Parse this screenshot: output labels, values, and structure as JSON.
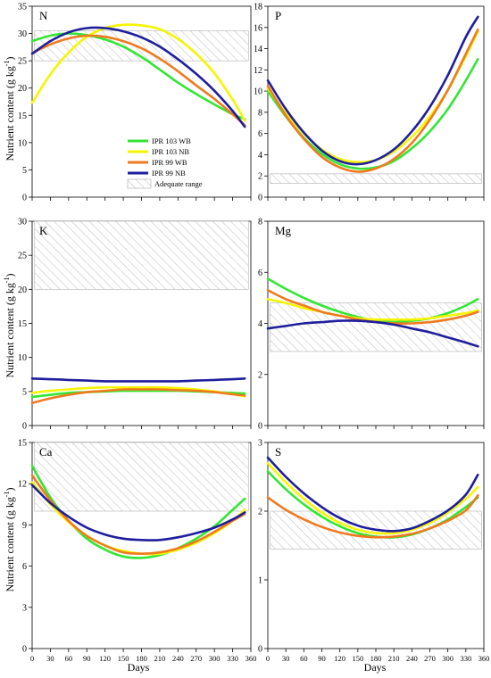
{
  "figure": {
    "ylabel_main": "Nutrient content (g kg",
    "ylabel_sup": "-1",
    "ylabel_close": ")",
    "xlabel": "Days"
  },
  "legend": {
    "items": [
      {
        "label": "IPR 103 WB",
        "color": "#33e633"
      },
      {
        "label": "IPR 103 NB",
        "color": "#f5f500"
      },
      {
        "label": "IPR 99 WB",
        "color": "#f07a1e"
      },
      {
        "label": "IPR 99 NB",
        "color": "#1e1e9e"
      }
    ],
    "adequate_label": "Adequate range"
  },
  "chart_data": [
    {
      "type": "line",
      "title": "N",
      "x": [
        0,
        30,
        60,
        90,
        120,
        150,
        180,
        210,
        240,
        270,
        300,
        330,
        360
      ],
      "ylim": [
        0,
        35
      ],
      "yticks": [
        0,
        5,
        10,
        15,
        20,
        25,
        30,
        35
      ],
      "adequate_range": [
        25,
        30.5
      ],
      "series": [
        {
          "name": "IPR 103 WB",
          "x": [
            0,
            30,
            60,
            90,
            120,
            150,
            180,
            210,
            240,
            270,
            300,
            330,
            350
          ],
          "values": [
            28.6,
            29.6,
            30.0,
            29.7,
            28.9,
            27.6,
            25.7,
            23.4,
            21.0,
            18.9,
            17.0,
            15.2,
            14.3
          ]
        },
        {
          "name": "IPR 103 NB",
          "x": [
            0,
            30,
            60,
            90,
            120,
            150,
            180,
            210,
            240,
            270,
            300,
            330,
            350
          ],
          "values": [
            17.3,
            22.5,
            26.5,
            29.4,
            31.0,
            31.6,
            31.5,
            30.8,
            29.0,
            26.3,
            22.7,
            17.9,
            14.0
          ]
        },
        {
          "name": "IPR 99 WB",
          "x": [
            0,
            30,
            60,
            90,
            120,
            150,
            180,
            210,
            240,
            270,
            300,
            330,
            350
          ],
          "values": [
            26.4,
            28.0,
            29.1,
            29.6,
            29.4,
            28.6,
            27.3,
            25.4,
            23.1,
            20.5,
            18.0,
            15.2,
            13.2
          ]
        },
        {
          "name": "IPR 99 NB",
          "x": [
            0,
            30,
            60,
            90,
            120,
            150,
            180,
            210,
            240,
            270,
            300,
            330,
            350
          ],
          "values": [
            26.3,
            28.6,
            30.2,
            31.0,
            31.0,
            30.4,
            29.3,
            27.6,
            25.3,
            22.6,
            19.5,
            15.8,
            12.9
          ]
        }
      ]
    },
    {
      "type": "line",
      "title": "P",
      "x": [
        0,
        30,
        60,
        90,
        120,
        150,
        180,
        210,
        240,
        270,
        300,
        330,
        360
      ],
      "ylim": [
        0,
        18
      ],
      "yticks": [
        0,
        2,
        4,
        6,
        8,
        10,
        12,
        14,
        16,
        18
      ],
      "adequate_range": [
        1.3,
        2.2
      ],
      "series": [
        {
          "name": "IPR 103 WB",
          "x": [
            0,
            30,
            60,
            90,
            120,
            150,
            180,
            210,
            240,
            270,
            300,
            330,
            350
          ],
          "values": [
            10.0,
            7.6,
            5.6,
            4.1,
            3.1,
            2.7,
            2.8,
            3.4,
            4.6,
            6.2,
            8.3,
            11.0,
            13.0
          ]
        },
        {
          "name": "IPR 103 NB",
          "x": [
            0,
            30,
            60,
            90,
            120,
            150,
            180,
            210,
            240,
            270,
            300,
            330,
            350
          ],
          "values": [
            10.3,
            7.9,
            6.0,
            4.5,
            3.6,
            3.3,
            3.5,
            4.3,
            5.7,
            7.6,
            10.1,
            13.3,
            15.6
          ]
        },
        {
          "name": "IPR 99 WB",
          "x": [
            0,
            30,
            60,
            90,
            120,
            150,
            180,
            210,
            240,
            270,
            300,
            330,
            350
          ],
          "values": [
            10.5,
            7.7,
            5.5,
            3.8,
            2.8,
            2.4,
            2.7,
            3.6,
            5.1,
            7.3,
            10.1,
            13.5,
            15.8
          ]
        },
        {
          "name": "IPR 99 NB",
          "x": [
            0,
            30,
            60,
            90,
            120,
            150,
            180,
            210,
            240,
            270,
            300,
            330,
            350
          ],
          "values": [
            11.0,
            8.3,
            6.1,
            4.4,
            3.4,
            3.1,
            3.5,
            4.5,
            6.2,
            8.5,
            11.5,
            15.1,
            17.0
          ]
        }
      ]
    },
    {
      "type": "line",
      "title": "K",
      "x": [
        0,
        30,
        60,
        90,
        120,
        150,
        180,
        210,
        240,
        270,
        300,
        330,
        360
      ],
      "ylim": [
        0,
        30
      ],
      "yticks": [
        0,
        5,
        10,
        15,
        20,
        25,
        30
      ],
      "adequate_range": [
        20,
        30
      ],
      "series": [
        {
          "name": "IPR 103 WB",
          "x": [
            0,
            30,
            60,
            90,
            120,
            150,
            180,
            210,
            240,
            270,
            300,
            330,
            350
          ],
          "values": [
            4.2,
            4.5,
            4.8,
            4.9,
            5.0,
            5.1,
            5.1,
            5.1,
            5.1,
            5.0,
            4.9,
            4.8,
            4.7
          ]
        },
        {
          "name": "IPR 103 NB",
          "x": [
            0,
            30,
            60,
            90,
            120,
            150,
            180,
            210,
            240,
            270,
            300,
            330,
            350
          ],
          "values": [
            4.8,
            5.1,
            5.3,
            5.5,
            5.6,
            5.6,
            5.6,
            5.6,
            5.5,
            5.3,
            5.0,
            4.6,
            4.3
          ]
        },
        {
          "name": "IPR 99 WB",
          "x": [
            0,
            30,
            60,
            90,
            120,
            150,
            180,
            210,
            240,
            270,
            300,
            330,
            350
          ],
          "values": [
            3.3,
            4.0,
            4.5,
            4.9,
            5.1,
            5.3,
            5.3,
            5.3,
            5.2,
            5.1,
            4.9,
            4.6,
            4.4
          ]
        },
        {
          "name": "IPR 99 NB",
          "x": [
            0,
            30,
            60,
            90,
            120,
            150,
            180,
            210,
            240,
            270,
            300,
            330,
            350
          ],
          "values": [
            6.9,
            6.8,
            6.7,
            6.6,
            6.5,
            6.5,
            6.5,
            6.5,
            6.5,
            6.6,
            6.7,
            6.8,
            6.9
          ]
        }
      ]
    },
    {
      "type": "line",
      "title": "Mg",
      "x": [
        0,
        30,
        60,
        90,
        120,
        150,
        180,
        210,
        240,
        270,
        300,
        330,
        360
      ],
      "ylim": [
        0,
        8
      ],
      "yticks": [
        0,
        2,
        4,
        6,
        8
      ],
      "adequate_range": [
        2.9,
        4.8
      ],
      "series": [
        {
          "name": "IPR 103 WB",
          "x": [
            0,
            30,
            60,
            90,
            120,
            150,
            180,
            210,
            240,
            270,
            300,
            330,
            350
          ],
          "values": [
            5.75,
            5.35,
            5.0,
            4.7,
            4.45,
            4.25,
            4.1,
            4.05,
            4.1,
            4.2,
            4.4,
            4.7,
            4.95
          ]
        },
        {
          "name": "IPR 103 NB",
          "x": [
            0,
            30,
            60,
            90,
            120,
            150,
            180,
            210,
            240,
            270,
            300,
            330,
            350
          ],
          "values": [
            4.95,
            4.8,
            4.6,
            4.45,
            4.3,
            4.2,
            4.15,
            4.15,
            4.15,
            4.2,
            4.3,
            4.4,
            4.5
          ]
        },
        {
          "name": "IPR 99 WB",
          "x": [
            0,
            30,
            60,
            90,
            120,
            150,
            180,
            210,
            240,
            270,
            300,
            330,
            350
          ],
          "values": [
            5.3,
            4.95,
            4.7,
            4.45,
            4.3,
            4.15,
            4.05,
            4.0,
            4.0,
            4.05,
            4.15,
            4.3,
            4.45
          ]
        },
        {
          "name": "IPR 99 NB",
          "x": [
            0,
            30,
            60,
            90,
            120,
            150,
            180,
            210,
            240,
            270,
            300,
            330,
            350
          ],
          "values": [
            3.8,
            3.9,
            4.0,
            4.05,
            4.1,
            4.1,
            4.05,
            3.95,
            3.8,
            3.65,
            3.45,
            3.25,
            3.1
          ]
        }
      ]
    },
    {
      "type": "line",
      "title": "Ca",
      "x": [
        0,
        30,
        60,
        90,
        120,
        150,
        180,
        210,
        240,
        270,
        300,
        330,
        360
      ],
      "ylim": [
        0,
        15
      ],
      "yticks": [
        0,
        3,
        6,
        9,
        12,
        15
      ],
      "adequate_range": [
        10,
        15
      ],
      "series": [
        {
          "name": "IPR 103 WB",
          "x": [
            0,
            30,
            60,
            90,
            120,
            150,
            180,
            210,
            240,
            270,
            300,
            330,
            350
          ],
          "values": [
            13.3,
            11.0,
            9.3,
            8.0,
            7.2,
            6.7,
            6.6,
            6.8,
            7.3,
            8.0,
            8.9,
            10.1,
            10.9
          ]
        },
        {
          "name": "IPR 103 NB",
          "x": [
            0,
            30,
            60,
            90,
            120,
            150,
            180,
            210,
            240,
            270,
            300,
            330,
            350
          ],
          "values": [
            12.1,
            10.5,
            9.2,
            8.2,
            7.5,
            7.1,
            6.9,
            6.9,
            7.2,
            7.7,
            8.4,
            9.3,
            10.1
          ]
        },
        {
          "name": "IPR 99 WB",
          "x": [
            0,
            30,
            60,
            90,
            120,
            150,
            180,
            210,
            240,
            270,
            300,
            330,
            350
          ],
          "values": [
            12.6,
            10.8,
            9.3,
            8.2,
            7.5,
            7.0,
            6.9,
            7.0,
            7.3,
            7.8,
            8.5,
            9.3,
            9.8
          ]
        },
        {
          "name": "IPR 99 NB",
          "x": [
            0,
            30,
            60,
            90,
            120,
            150,
            180,
            210,
            240,
            270,
            300,
            330,
            350
          ],
          "values": [
            11.9,
            10.6,
            9.6,
            8.8,
            8.3,
            8.0,
            7.9,
            7.9,
            8.1,
            8.4,
            8.8,
            9.4,
            9.9
          ]
        }
      ]
    },
    {
      "type": "line",
      "title": "S",
      "x": [
        0,
        30,
        60,
        90,
        120,
        150,
        180,
        210,
        240,
        270,
        300,
        330,
        360
      ],
      "ylim": [
        0,
        3
      ],
      "yticks": [
        0,
        1,
        2,
        3
      ],
      "adequate_range": [
        1.45,
        2.0
      ],
      "series": [
        {
          "name": "IPR 103 WB",
          "x": [
            0,
            30,
            60,
            90,
            120,
            150,
            180,
            210,
            240,
            270,
            300,
            330,
            350
          ],
          "values": [
            2.58,
            2.32,
            2.1,
            1.92,
            1.78,
            1.68,
            1.63,
            1.62,
            1.66,
            1.75,
            1.88,
            2.06,
            2.2
          ]
        },
        {
          "name": "IPR 103 NB",
          "x": [
            0,
            30,
            60,
            90,
            120,
            150,
            180,
            210,
            240,
            270,
            300,
            330,
            350
          ],
          "values": [
            2.7,
            2.42,
            2.18,
            1.98,
            1.83,
            1.73,
            1.68,
            1.68,
            1.73,
            1.83,
            1.98,
            2.18,
            2.35
          ]
        },
        {
          "name": "IPR 99 WB",
          "x": [
            0,
            30,
            60,
            90,
            120,
            150,
            180,
            210,
            240,
            270,
            300,
            330,
            350
          ],
          "values": [
            2.2,
            2.02,
            1.88,
            1.77,
            1.69,
            1.64,
            1.62,
            1.63,
            1.67,
            1.75,
            1.86,
            2.01,
            2.23
          ]
        },
        {
          "name": "IPR 99 NB",
          "x": [
            0,
            30,
            60,
            90,
            120,
            150,
            180,
            210,
            240,
            270,
            300,
            330,
            350
          ],
          "values": [
            2.78,
            2.5,
            2.26,
            2.06,
            1.9,
            1.79,
            1.73,
            1.71,
            1.75,
            1.86,
            2.01,
            2.24,
            2.53
          ]
        }
      ]
    }
  ]
}
